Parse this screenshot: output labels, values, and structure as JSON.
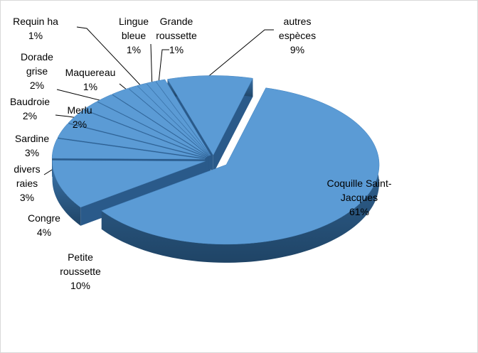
{
  "chart_data": {
    "type": "pie3d",
    "color": "#5b9bd5",
    "categories": [
      "Coquille Saint-Jacques",
      "Petite roussette",
      "Congre",
      "divers raies",
      "Sardine",
      "Merlu",
      "Baudroie",
      "Dorade grise",
      "Maquereau",
      "Requin ha",
      "Lingue bleue",
      "Grande roussette",
      "autres espèces"
    ],
    "values": [
      61,
      10,
      4,
      3,
      3,
      2,
      2,
      2,
      1,
      1,
      1,
      1,
      9
    ],
    "value_labels": [
      "61%",
      "10%",
      "4%",
      "3%",
      "3%",
      "2%",
      "2%",
      "2%",
      "1%",
      "1%",
      "1%",
      "1%",
      "9%"
    ]
  }
}
